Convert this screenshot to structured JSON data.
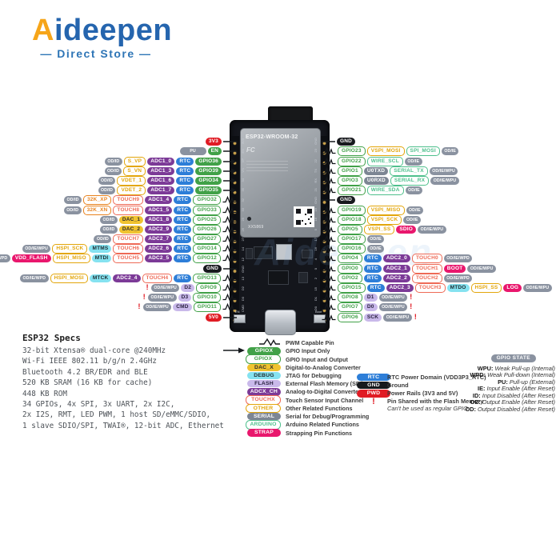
{
  "logo": {
    "brand": "Aideepen",
    "brand_first_letter": "A",
    "brand_rest": "ideepen",
    "tagline": "— Direct Store —"
  },
  "palette": {
    "pwd": {
      "c": "#e01b24",
      "fg": "#ffffff"
    },
    "gnd": {
      "c": "#17191d",
      "fg": "#ffffff"
    },
    "gpio_in": {
      "c": "#41a148",
      "fg": "#ffffff"
    },
    "gpio_io": {
      "c": "#41a148",
      "outline": true
    },
    "other": {
      "c": "#e3a60b",
      "outline": true
    },
    "other2": {
      "c": "#e8821e",
      "outline": true
    },
    "dac": {
      "c": "#f0c330",
      "fg": "#2b2b2b"
    },
    "debug": {
      "c": "#85e2f0",
      "fg": "#1d2a2e"
    },
    "flash": {
      "c": "#c9b9ea",
      "fg": "#2b2340"
    },
    "adc": {
      "c": "#7c3a97",
      "fg": "#ffffff"
    },
    "touch": {
      "c": "#ee6a56",
      "outline": true
    },
    "serial": {
      "c": "#7d8694",
      "fg": "#ffffff"
    },
    "arduino": {
      "c": "#4fc08d",
      "outline": true
    },
    "strap": {
      "c": "#e9176d",
      "fg": "#ffffff"
    },
    "rtc": {
      "c": "#2d7ed8",
      "fg": "#ffffff"
    },
    "state": {
      "c": "#8a92a0",
      "fg": "#ffffff"
    },
    "warn": {
      "c": "#e01b24"
    }
  },
  "board": {
    "module_name": "ESP32-WROOM-32",
    "module_serial": "XX5869",
    "fcc_mark": "FC",
    "en_button": "EN",
    "boot_button": "Boot",
    "left_edge_pins": [
      "3V3",
      "EN",
      "VP",
      "VN",
      "34",
      "35",
      "32",
      "33",
      "25",
      "26",
      "27",
      "14",
      "12",
      "GND",
      "13",
      "D2",
      "D3",
      "CMD",
      "5V"
    ],
    "right_edge_pins": [
      "GND",
      "23",
      "22",
      "TX",
      "RX",
      "21",
      "GND",
      "19",
      "18",
      "5",
      "17",
      "16",
      "4",
      "0",
      "2",
      "15",
      "D1",
      "D0",
      "CLK"
    ]
  },
  "pins": {
    "left": [
      {
        "connector": "line",
        "tags": [
          [
            "pwd",
            "3V3"
          ]
        ]
      },
      {
        "connector": "line",
        "tags": [
          [
            "state",
            "PU",
            "wide"
          ],
          [
            "gpio_in",
            "EN"
          ]
        ]
      },
      {
        "connector": "arrow",
        "tags": [
          [
            "state",
            "OD/ID"
          ],
          [
            "other",
            "S_VP"
          ],
          [
            "adc",
            "ADC1_0"
          ],
          [
            "rtc",
            "RTC"
          ],
          [
            "gpio_in",
            "GPIO36"
          ]
        ]
      },
      {
        "connector": "arrow",
        "tags": [
          [
            "state",
            "OD/ID"
          ],
          [
            "other",
            "S_VN"
          ],
          [
            "adc",
            "ADC1_3"
          ],
          [
            "rtc",
            "RTC"
          ],
          [
            "gpio_in",
            "GPIO39"
          ]
        ]
      },
      {
        "connector": "arrow",
        "tags": [
          [
            "state",
            "OD/ID"
          ],
          [
            "other",
            "VDET_1"
          ],
          [
            "adc",
            "ADC1_6"
          ],
          [
            "rtc",
            "RTC"
          ],
          [
            "gpio_in",
            "GPIO34"
          ]
        ]
      },
      {
        "connector": "arrow",
        "tags": [
          [
            "state",
            "OD/ID"
          ],
          [
            "other",
            "VDET_2"
          ],
          [
            "adc",
            "ADC1_7"
          ],
          [
            "rtc",
            "RTC"
          ],
          [
            "gpio_in",
            "GPIO35"
          ]
        ]
      },
      {
        "connector": "pwm",
        "tags": [
          [
            "state",
            "OD/ID"
          ],
          [
            "other2",
            "32K_XP"
          ],
          [
            "touch",
            "TOUCH9"
          ],
          [
            "adc",
            "ADC1_4"
          ],
          [
            "rtc",
            "RTC"
          ],
          [
            "gpio_io",
            "GPIO32"
          ]
        ]
      },
      {
        "connector": "pwm",
        "tags": [
          [
            "state",
            "OD/ID"
          ],
          [
            "other2",
            "32K_XN"
          ],
          [
            "touch",
            "TOUCH8"
          ],
          [
            "adc",
            "ADC1_5"
          ],
          [
            "rtc",
            "RTC"
          ],
          [
            "gpio_io",
            "GPIO33"
          ]
        ]
      },
      {
        "connector": "pwm",
        "tags": [
          [
            "state",
            "OD/ID"
          ],
          [
            "dac",
            "DAC_1"
          ],
          [
            "adc",
            "ADC1_8"
          ],
          [
            "rtc",
            "RTC"
          ],
          [
            "gpio_io",
            "GPIO25"
          ]
        ]
      },
      {
        "connector": "pwm",
        "tags": [
          [
            "state",
            "OD/ID"
          ],
          [
            "dac",
            "DAC_2"
          ],
          [
            "adc",
            "ADC2_9"
          ],
          [
            "rtc",
            "RTC"
          ],
          [
            "gpio_io",
            "GPIO26"
          ]
        ]
      },
      {
        "connector": "pwm",
        "tags": [
          [
            "state",
            "OD/ID"
          ],
          [
            "touch",
            "TOUCH7"
          ],
          [
            "adc",
            "ADC2_7"
          ],
          [
            "rtc",
            "RTC"
          ],
          [
            "gpio_io",
            "GPIO27"
          ]
        ]
      },
      {
        "connector": "pwm",
        "tags": [
          [
            "state",
            "OD/IE/WPU"
          ],
          [
            "other",
            "HSPI_SCK"
          ],
          [
            "debug",
            "MTMS"
          ],
          [
            "touch",
            "TOUCH6"
          ],
          [
            "adc",
            "ADC2_6"
          ],
          [
            "rtc",
            "RTC"
          ],
          [
            "gpio_io",
            "GPIO14"
          ]
        ]
      },
      {
        "connector": "pwm",
        "tags": [
          [
            "state",
            "OD/IE/WPD"
          ],
          [
            "strap",
            "VDD_FLASH"
          ],
          [
            "other",
            "HSPI_MISO"
          ],
          [
            "debug",
            "MTDI"
          ],
          [
            "touch",
            "TOUCH5"
          ],
          [
            "adc",
            "ADC2_5"
          ],
          [
            "rtc",
            "RTC"
          ],
          [
            "gpio_io",
            "GPIO12"
          ]
        ]
      },
      {
        "connector": "line",
        "tags": [
          [
            "gnd",
            "GND"
          ]
        ]
      },
      {
        "connector": "pwm",
        "tags": [
          [
            "state",
            "OD/IE/WPD"
          ],
          [
            "other",
            "HSPI_MOSI"
          ],
          [
            "debug",
            "MTCK"
          ],
          [
            "adc",
            "ADC2_4"
          ],
          [
            "touch",
            "TOUCH4"
          ],
          [
            "rtc",
            "RTC"
          ],
          [
            "gpio_io",
            "GPIO13"
          ]
        ]
      },
      {
        "connector": "pwm",
        "tags": [
          [
            "warn",
            "!"
          ],
          [
            "state",
            "OD/IE/WPU"
          ],
          [
            "flash",
            "D2"
          ],
          [
            "gpio_io",
            "GPIO9"
          ]
        ]
      },
      {
        "connector": "pwm",
        "tags": [
          [
            "warn",
            "!"
          ],
          [
            "state",
            "OD/IE/WPU"
          ],
          [
            "flash",
            "D3"
          ],
          [
            "gpio_io",
            "GPIO10"
          ]
        ]
      },
      {
        "connector": "pwm",
        "tags": [
          [
            "warn",
            "!"
          ],
          [
            "state",
            "OD/IE/WPU"
          ],
          [
            "flash",
            "CMD"
          ],
          [
            "gpio_io",
            "GPIO11"
          ]
        ]
      },
      {
        "connector": "line",
        "tags": [
          [
            "pwd",
            "5V0"
          ]
        ]
      }
    ],
    "right": [
      {
        "connector": "line",
        "tags": [
          [
            "gnd",
            "GND"
          ]
        ]
      },
      {
        "connector": "pwm",
        "tags": [
          [
            "gpio_io",
            "GPIO23"
          ],
          [
            "other",
            "VSPI_MOSI"
          ],
          [
            "arduino",
            "SPI_MOSI"
          ],
          [
            "state",
            "OD/IE"
          ]
        ]
      },
      {
        "connector": "pwm",
        "tags": [
          [
            "gpio_io",
            "GPIO22"
          ],
          [
            "arduino",
            "WIRE_SCL"
          ],
          [
            "state",
            "OD/IE"
          ]
        ]
      },
      {
        "connector": "pwm",
        "tags": [
          [
            "gpio_io",
            "GPIO1"
          ],
          [
            "serial",
            "U0TXD"
          ],
          [
            "arduino",
            "SERIAL_TX"
          ],
          [
            "state",
            "OD/IE/WPU"
          ]
        ]
      },
      {
        "connector": "pwm",
        "tags": [
          [
            "gpio_io",
            "GPIO3"
          ],
          [
            "serial",
            "U0RXD"
          ],
          [
            "arduino",
            "SERIAL_RX"
          ],
          [
            "state",
            "OD/IE/WPU"
          ]
        ]
      },
      {
        "connector": "pwm",
        "tags": [
          [
            "gpio_io",
            "GPIO21"
          ],
          [
            "arduino",
            "WIRE_SDA"
          ],
          [
            "state",
            "OD/IE"
          ]
        ]
      },
      {
        "connector": "line",
        "tags": [
          [
            "gnd",
            "GND"
          ]
        ]
      },
      {
        "connector": "pwm",
        "tags": [
          [
            "gpio_io",
            "GPIO19"
          ],
          [
            "other",
            "VSPI_MISO"
          ],
          [
            "state",
            "OD/IE"
          ]
        ]
      },
      {
        "connector": "pwm",
        "tags": [
          [
            "gpio_io",
            "GPIO18"
          ],
          [
            "other",
            "VSPI_SCK"
          ],
          [
            "state",
            "OD/IE"
          ]
        ]
      },
      {
        "connector": "pwm",
        "tags": [
          [
            "gpio_io",
            "GPIO5"
          ],
          [
            "other",
            "VSPI_SS"
          ],
          [
            "strap",
            "SDIO"
          ],
          [
            "state",
            "OD/IE/WPU"
          ]
        ]
      },
      {
        "connector": "pwm",
        "tags": [
          [
            "gpio_io",
            "GPIO17"
          ],
          [
            "state",
            "OD/IE"
          ]
        ]
      },
      {
        "connector": "pwm",
        "tags": [
          [
            "gpio_io",
            "GPIO16"
          ],
          [
            "state",
            "OD/IE"
          ]
        ]
      },
      {
        "connector": "pwm",
        "tags": [
          [
            "gpio_io",
            "GPIO4"
          ],
          [
            "rtc",
            "RTC"
          ],
          [
            "adc",
            "ADC2_0"
          ],
          [
            "touch",
            "TOUCH0"
          ],
          [
            "state",
            "OD/IE/WPD"
          ]
        ]
      },
      {
        "connector": "pwm",
        "tags": [
          [
            "gpio_io",
            "GPIO0"
          ],
          [
            "rtc",
            "RTC"
          ],
          [
            "adc",
            "ADC2_1"
          ],
          [
            "touch",
            "TOUCH1"
          ],
          [
            "strap",
            "BOOT"
          ],
          [
            "state",
            "OD/IE/WPU"
          ]
        ]
      },
      {
        "connector": "pwm",
        "tags": [
          [
            "gpio_io",
            "GPIO2"
          ],
          [
            "rtc",
            "RTC"
          ],
          [
            "adc",
            "ADC2_2"
          ],
          [
            "touch",
            "TOUCH2"
          ],
          [
            "state",
            "OD/IE/WPD"
          ]
        ]
      },
      {
        "connector": "pwm",
        "tags": [
          [
            "gpio_io",
            "GPIO15"
          ],
          [
            "rtc",
            "RTC"
          ],
          [
            "adc",
            "ADC2_3"
          ],
          [
            "touch",
            "TOUCH3"
          ],
          [
            "debug",
            "MTDO"
          ],
          [
            "other",
            "HSPI_SS"
          ],
          [
            "strap",
            "LOG"
          ],
          [
            "state",
            "OD/IE/WPU"
          ]
        ]
      },
      {
        "connector": "pwm",
        "tags": [
          [
            "gpio_io",
            "GPIO8"
          ],
          [
            "flash",
            "D1"
          ],
          [
            "state",
            "OD/IE/WPU"
          ],
          [
            "warn",
            "!"
          ]
        ]
      },
      {
        "connector": "pwm",
        "tags": [
          [
            "gpio_io",
            "GPIO7"
          ],
          [
            "flash",
            "D0"
          ],
          [
            "state",
            "OD/IE/WPU"
          ],
          [
            "warn",
            "!"
          ]
        ]
      },
      {
        "connector": "pwm",
        "tags": [
          [
            "gpio_io",
            "GPIO6"
          ],
          [
            "flash",
            "SCK"
          ],
          [
            "state",
            "OD/IE/WPU"
          ],
          [
            "warn",
            "!"
          ]
        ]
      }
    ]
  },
  "legend": {
    "items": [
      {
        "symbol": "pwm",
        "desc": "PWM Capable Pin"
      },
      {
        "kind": "gpio_in",
        "label": "GPIOX",
        "arrow": true,
        "desc": "GPIO Input Only"
      },
      {
        "kind": "gpio_io",
        "label": "GPIOX",
        "desc": "GPIO Input and Output"
      },
      {
        "kind": "dac",
        "label": "DAC_X",
        "desc": "Digital-to-Analog Converter"
      },
      {
        "kind": "debug",
        "label": "DEBUG",
        "desc": "JTAG for Debugging"
      },
      {
        "kind": "flash",
        "label": "FLASH",
        "desc": "External Flash Memory (SPI)"
      },
      {
        "kind": "adc",
        "label": "ADCX_CH",
        "desc": "Analog-to-Digital Converter"
      },
      {
        "kind": "touch",
        "label": "TOUCHX",
        "desc": "Touch Sensor Input Channel"
      },
      {
        "kind": "other",
        "label": "OTHER",
        "desc": "Other Related Functions"
      },
      {
        "kind": "serial",
        "label": "SERIAL",
        "desc": "Serial for Debug/Programming"
      },
      {
        "kind": "arduino",
        "label": "ARDUINO",
        "desc": "Arduino Related Functions"
      },
      {
        "kind": "strap",
        "label": "STRAP",
        "desc": "Strapping Pin Functions"
      }
    ]
  },
  "power_legend": [
    {
      "kind": "rtc",
      "label": "RTC",
      "desc": "RTC Power Domain (VDD3P3_RTC)"
    },
    {
      "kind": "gnd",
      "label": "GND",
      "desc": "Ground"
    },
    {
      "kind": "pwd",
      "label": "PWD",
      "desc": "Power Rails (3V3 and 5V)"
    },
    {
      "kind": "warn",
      "label": "!",
      "desc": "Pin Shared with the Flash Memory",
      "desc2": "Can't be used as regular GPIO"
    }
  ],
  "gpio_state": {
    "title": "GPIO STATE",
    "entries": [
      {
        "abbr": "WPU",
        "desc": "Weak Pull-up (Internal)"
      },
      {
        "abbr": "WPD",
        "desc": "Weak Pull-down (Internal)"
      },
      {
        "abbr": "PU",
        "desc": "Pull-up (External)"
      },
      {
        "abbr": "IE",
        "desc": "Input Enable (After Reset)"
      },
      {
        "abbr": "ID",
        "desc": "Input Disabled (After Reset)"
      },
      {
        "abbr": "OE",
        "desc": "Output Enable (After Reset)"
      },
      {
        "abbr": "OD",
        "desc": "Output Disabled (After Reset)"
      }
    ]
  },
  "specs": {
    "title": "ESP32 Specs",
    "lines": [
      "32-bit Xtensa® dual-core @240MHz",
      "Wi-Fi IEEE 802.11 b/g/n 2.4GHz",
      "Bluetooth 4.2 BR/EDR and BLE",
      "520 KB SRAM (16 KB for cache)",
      "448 KB ROM",
      "34 GPIOs, 4x SPI, 3x UART, 2x I2C,",
      "2x I2S, RMT, LED PWM, 1 host SD/eMMC/SDIO,",
      "1 slave SDIO/SPI, TWAI®, 12-bit ADC, Ethernet"
    ]
  }
}
